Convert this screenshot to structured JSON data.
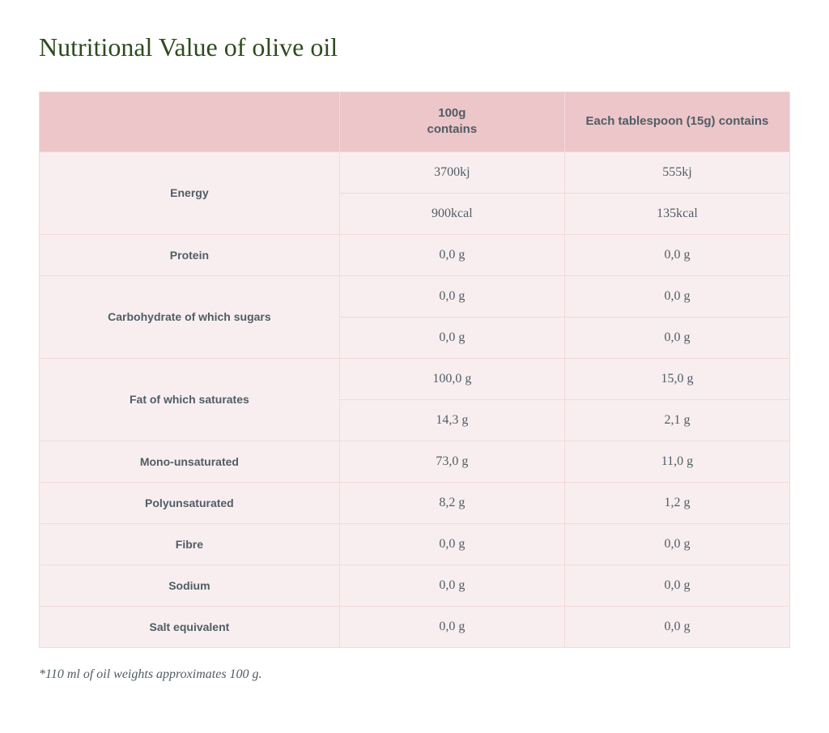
{
  "title": "Nutritional Value of olive oil",
  "table": {
    "type": "table",
    "header_bg": "#edc6c9",
    "cell_bg": "#f9eeef",
    "border_color": "#f2d9db",
    "text_color": "#4f5d66",
    "title_color": "#2e4b1f",
    "header_font": "Verdana",
    "body_font": "Georgia",
    "columns": [
      {
        "label": "",
        "width_pct": 40
      },
      {
        "label": "100g\ncontains",
        "width_pct": 30
      },
      {
        "label": "Each tablespoon (15g) contains",
        "width_pct": 30
      }
    ],
    "rows": [
      {
        "label": "Energy",
        "rowspan": 2,
        "per100": "3700kj",
        "per15": "555kj"
      },
      {
        "label": null,
        "per100": "900kcal",
        "per15": "135kcal"
      },
      {
        "label": "Protein",
        "rowspan": 1,
        "per100": "0,0 g",
        "per15": "0,0 g"
      },
      {
        "label": "Carbohydrate of which sugars",
        "rowspan": 2,
        "per100": "0,0 g",
        "per15": "0,0 g"
      },
      {
        "label": null,
        "per100": "0,0 g",
        "per15": "0,0 g"
      },
      {
        "label": "Fat of which saturates",
        "rowspan": 2,
        "per100": "100,0 g",
        "per15": "15,0 g"
      },
      {
        "label": null,
        "per100": "14,3 g",
        "per15": "2,1 g"
      },
      {
        "label": "Mono-unsaturated",
        "rowspan": 1,
        "per100": "73,0 g",
        "per15": "11,0 g"
      },
      {
        "label": "Polyunsaturated",
        "rowspan": 1,
        "per100": "8,2 g",
        "per15": "1,2 g"
      },
      {
        "label": "Fibre",
        "rowspan": 1,
        "per100": "0,0 g",
        "per15": "0,0 g"
      },
      {
        "label": "Sodium",
        "rowspan": 1,
        "per100": "0,0 g",
        "per15": "0,0 g"
      },
      {
        "label": "Salt equivalent",
        "rowspan": 1,
        "per100": "0,0 g",
        "per15": "0,0 g"
      }
    ]
  },
  "footnote": "*110 ml of oil weights approximates 100 g."
}
